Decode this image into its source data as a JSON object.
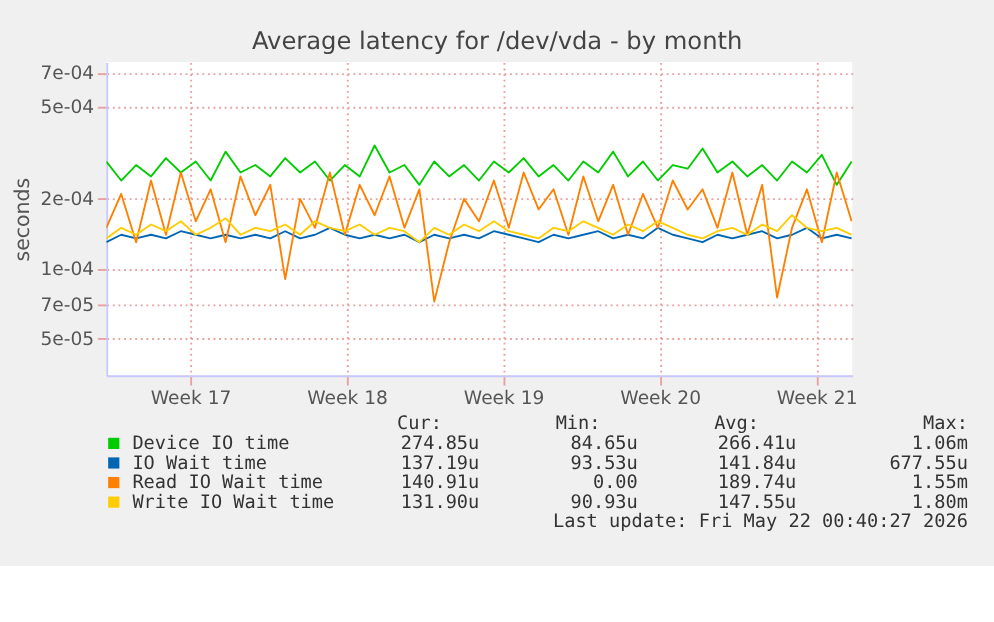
{
  "chart_data": {
    "type": "line",
    "title": "Average latency for /dev/vda - by month",
    "ylabel": "seconds",
    "log": "y",
    "grid": true,
    "legend": "bottom",
    "line_style": "solid",
    "marker": "none",
    "x": [
      "2026-04-18T16:00",
      "2026-04-19T08:00",
      "2026-04-20T00:00",
      "2026-04-20T16:00",
      "2026-04-21T08:00",
      "2026-04-22T00:00",
      "2026-04-22T16:00",
      "2026-04-23T08:00",
      "2026-04-24T00:00",
      "2026-04-24T16:00",
      "2026-04-25T08:00",
      "2026-04-26T00:00",
      "2026-04-26T16:00",
      "2026-04-27T08:00",
      "2026-04-28T00:00",
      "2026-04-28T16:00",
      "2026-04-29T08:00",
      "2026-04-30T00:00",
      "2026-04-30T16:00",
      "2026-05-01T08:00",
      "2026-05-02T00:00",
      "2026-05-02T16:00",
      "2026-05-03T08:00",
      "2026-05-04T00:00",
      "2026-05-04T16:00",
      "2026-05-05T08:00",
      "2026-05-06T00:00",
      "2026-05-06T16:00",
      "2026-05-07T08:00",
      "2026-05-08T00:00",
      "2026-05-08T16:00",
      "2026-05-09T08:00",
      "2026-05-10T00:00",
      "2026-05-10T16:00",
      "2026-05-11T08:00",
      "2026-05-12T00:00",
      "2026-05-12T16:00",
      "2026-05-13T08:00",
      "2026-05-14T00:00",
      "2026-05-14T16:00",
      "2026-05-15T08:00",
      "2026-05-16T00:00",
      "2026-05-16T16:00",
      "2026-05-17T08:00",
      "2026-05-18T00:00",
      "2026-05-18T16:00",
      "2026-05-19T08:00",
      "2026-05-20T00:00",
      "2026-05-20T16:00",
      "2026-05-21T08:00",
      "2026-05-22T00:00"
    ],
    "xlim": [
      "2026-04-18T16:00",
      "2026-05-22T00:40"
    ],
    "xticks": [
      {
        "value": "2026-04-22T10:00",
        "label": "Week 17"
      },
      {
        "value": "2026-04-29T10:00",
        "label": "Week 18"
      },
      {
        "value": "2026-05-06T10:00",
        "label": "Week 19"
      },
      {
        "value": "2026-05-13T10:00",
        "label": "Week 20"
      },
      {
        "value": "2026-05-20T10:00",
        "label": "Week 21"
      }
    ],
    "ylim": [
      3.46e-05,
      0.00078
    ],
    "yticks": [
      {
        "value": 5e-05,
        "label": "5e-05"
      },
      {
        "value": 7e-05,
        "label": "7e-05"
      },
      {
        "value": 0.0001,
        "label": "1e-04"
      },
      {
        "value": 0.0002,
        "label": "2e-04"
      },
      {
        "value": 0.0005,
        "label": "5e-04"
      },
      {
        "value": 0.0007,
        "label": "7e-04"
      }
    ],
    "series": [
      {
        "name": "Device IO time",
        "color": "#00cc00",
        "values": [
          0.00029,
          0.00024,
          0.00028,
          0.00025,
          0.0003,
          0.00026,
          0.00029,
          0.00024,
          0.00032,
          0.00026,
          0.00028,
          0.00025,
          0.0003,
          0.00026,
          0.00029,
          0.00024,
          0.00028,
          0.00025,
          0.00034,
          0.00026,
          0.00028,
          0.00023,
          0.00029,
          0.00025,
          0.00028,
          0.00024,
          0.00029,
          0.00026,
          0.0003,
          0.00025,
          0.00028,
          0.00024,
          0.00029,
          0.00026,
          0.00032,
          0.00025,
          0.00029,
          0.00024,
          0.00028,
          0.00027,
          0.00033,
          0.00026,
          0.00029,
          0.00025,
          0.00028,
          0.00024,
          0.00029,
          0.00026,
          0.00031,
          0.00023,
          0.00029
        ]
      },
      {
        "name": "IO Wait time",
        "color": "#0066b3",
        "values": [
          0.00013,
          0.00014,
          0.000135,
          0.00014,
          0.000135,
          0.000145,
          0.00014,
          0.000135,
          0.00014,
          0.000135,
          0.00014,
          0.000135,
          0.000145,
          0.000135,
          0.00014,
          0.00015,
          0.00014,
          0.000135,
          0.00014,
          0.000135,
          0.00014,
          0.00013,
          0.00014,
          0.000135,
          0.00014,
          0.000135,
          0.000145,
          0.00014,
          0.000135,
          0.00013,
          0.00014,
          0.000135,
          0.00014,
          0.000145,
          0.000135,
          0.00014,
          0.000135,
          0.00015,
          0.00014,
          0.000135,
          0.00013,
          0.00014,
          0.000135,
          0.00014,
          0.000145,
          0.000135,
          0.00014,
          0.00015,
          0.000135,
          0.00014,
          0.000135
        ]
      },
      {
        "name": "Read IO Wait time",
        "color": "#ff8000",
        "values": [
          0.00015,
          0.00021,
          0.00013,
          0.00024,
          0.00014,
          0.00026,
          0.00016,
          0.00022,
          0.00013,
          0.00025,
          0.00017,
          0.00023,
          9e-05,
          0.0002,
          0.00015,
          0.00026,
          0.00014,
          0.00023,
          0.00017,
          0.00025,
          0.00015,
          0.00022,
          7.2e-05,
          0.00013,
          0.0002,
          0.00016,
          0.00024,
          0.00015,
          0.00026,
          0.00018,
          0.00022,
          0.00014,
          0.00025,
          0.00016,
          0.00023,
          0.00014,
          0.00021,
          0.00015,
          0.00024,
          0.00018,
          0.00022,
          0.00015,
          0.00026,
          0.00014,
          0.00023,
          7.5e-05,
          0.00015,
          0.00022,
          0.00013,
          0.00026,
          0.00016
        ]
      },
      {
        "name": "Write IO Wait time",
        "color": "#ffcc00",
        "values": [
          0.000135,
          0.00015,
          0.00014,
          0.000155,
          0.000145,
          0.00016,
          0.00014,
          0.00015,
          0.000165,
          0.00014,
          0.00015,
          0.000145,
          0.000155,
          0.00014,
          0.00016,
          0.00015,
          0.000145,
          0.000155,
          0.00014,
          0.00015,
          0.000145,
          0.00013,
          0.00015,
          0.00014,
          0.000155,
          0.000145,
          0.00016,
          0.000145,
          0.00014,
          0.000135,
          0.00015,
          0.000145,
          0.00016,
          0.00015,
          0.00014,
          0.000155,
          0.000145,
          0.00016,
          0.00015,
          0.00014,
          0.000135,
          0.000145,
          0.00015,
          0.00014,
          0.000155,
          0.000145,
          0.00017,
          0.00015,
          0.000145,
          0.00015,
          0.00014
        ]
      }
    ],
    "annotations": [
      "Cur:",
      "Min:",
      "Avg:",
      "Max:",
      "274.85u",
      "84.65u",
      "266.41u",
      "1.06m",
      "137.19u",
      "93.53u",
      "141.84u",
      "677.55u",
      "140.91u",
      "0.00",
      "189.74u",
      "1.55m",
      "131.90u",
      "90.93u",
      "147.55u",
      "1.80m",
      "Last update: Fri May 22 00:40:27 2026"
    ]
  }
}
